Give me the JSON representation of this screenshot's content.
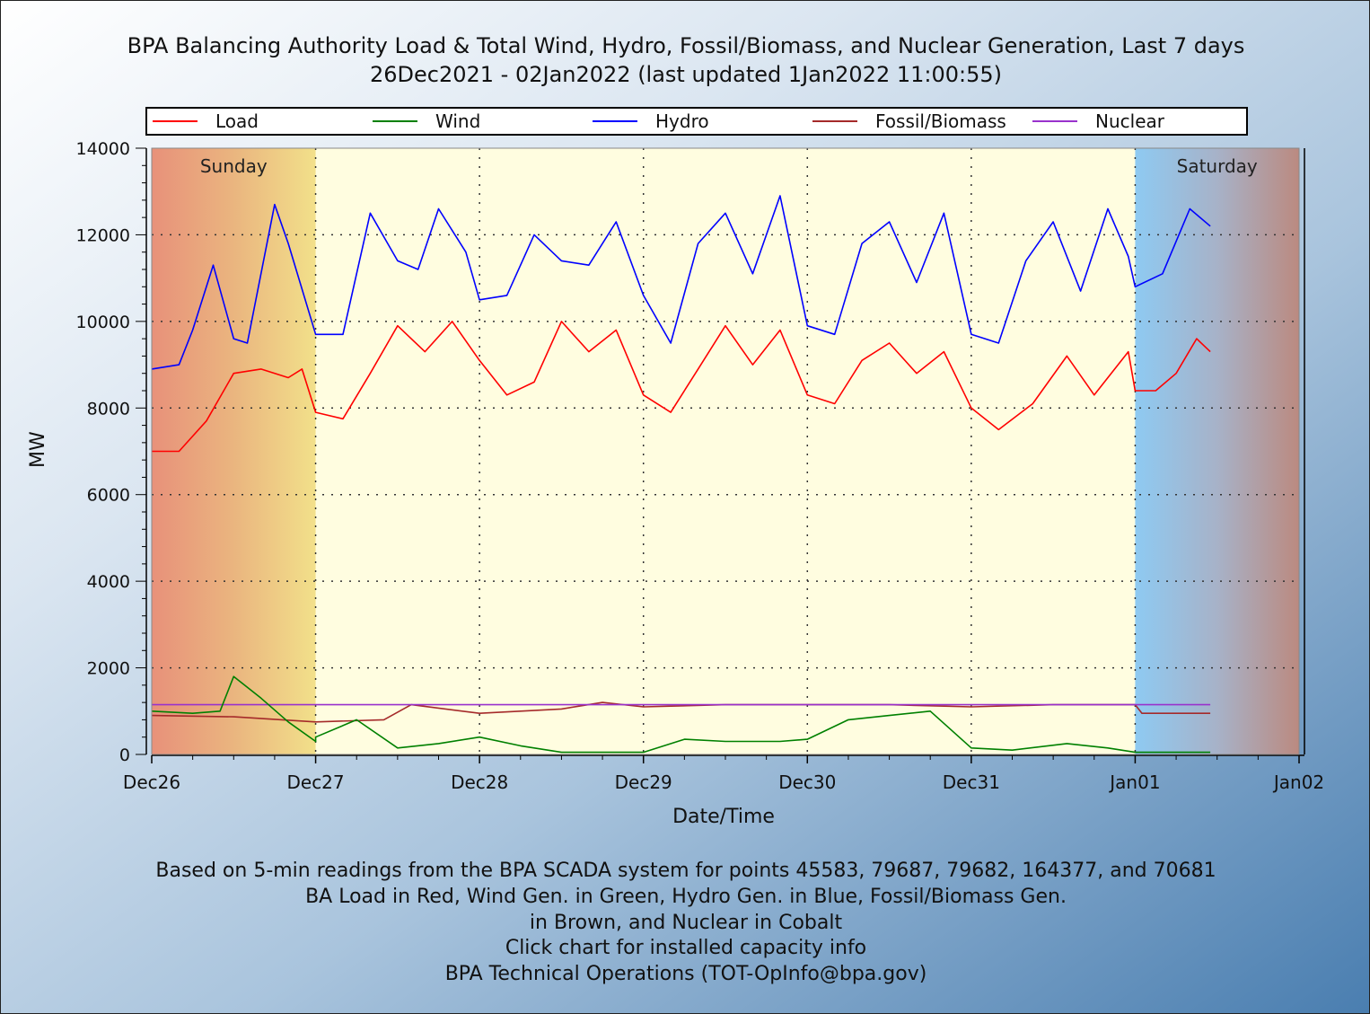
{
  "header": {
    "title_line1": "BPA Balancing Authority Load & Total Wind, Hydro, Fossil/Biomass, and Nuclear Generation, Last 7 days",
    "title_line2": "26Dec2021 - 02Jan2022 (last updated 1Jan2022 11:00:55)"
  },
  "footer": {
    "line1": "Based on 5-min readings from the BPA SCADA system for points 45583, 79687, 79682, 164377, and 70681",
    "line2": "BA Load in Red, Wind Gen. in Green, Hydro Gen. in Blue, Fossil/Biomass Gen.",
    "line3": "in Brown, and Nuclear in Cobalt",
    "line4": "Click chart for installed capacity info",
    "line5": "BPA Technical Operations (TOT-OpInfo@bpa.gov)"
  },
  "chart_data": {
    "type": "line",
    "xlabel": "Date/Time",
    "ylabel": "MW",
    "xlim": [
      "2021-12-26 00:00",
      "2022-01-02 00:00"
    ],
    "ylim": [
      0,
      14000
    ],
    "yticks": [
      0,
      2000,
      4000,
      6000,
      8000,
      10000,
      12000,
      14000
    ],
    "xtick_labels": [
      "Dec26",
      "Dec27",
      "Dec28",
      "Dec29",
      "Dec30",
      "Dec31",
      "Jan01",
      "Jan02"
    ],
    "grid": true,
    "legend_position": "top",
    "weekend_labels": [
      "Sunday",
      "Saturday"
    ],
    "colors": {
      "load": "#ff0000",
      "wind": "#008000",
      "hydro": "#0000ff",
      "fossil": "#a52a2a",
      "nuclear": "#9932cc",
      "plot_bg": "#fffde0",
      "grid": "#333333"
    },
    "series": [
      {
        "name": "Load",
        "color": "#ff0000",
        "x": [
          "2021-12-26 00:00",
          "2021-12-26 04:00",
          "2021-12-26 08:00",
          "2021-12-26 12:00",
          "2021-12-26 16:00",
          "2021-12-26 20:00",
          "2021-12-26 22:00",
          "2021-12-27 00:00",
          "2021-12-27 04:00",
          "2021-12-27 08:00",
          "2021-12-27 12:00",
          "2021-12-27 16:00",
          "2021-12-27 20:00",
          "2021-12-28 00:00",
          "2021-12-28 04:00",
          "2021-12-28 08:00",
          "2021-12-28 12:00",
          "2021-12-28 16:00",
          "2021-12-28 20:00",
          "2021-12-29 00:00",
          "2021-12-29 04:00",
          "2021-12-29 08:00",
          "2021-12-29 12:00",
          "2021-12-29 16:00",
          "2021-12-29 20:00",
          "2021-12-30 00:00",
          "2021-12-30 04:00",
          "2021-12-30 08:00",
          "2021-12-30 12:00",
          "2021-12-30 16:00",
          "2021-12-30 20:00",
          "2021-12-31 00:00",
          "2021-12-31 04:00",
          "2021-12-31 09:00",
          "2021-12-31 14:00",
          "2021-12-31 18:00",
          "2021-12-31 23:00",
          "2022-01-01 00:00",
          "2022-01-01 03:00",
          "2022-01-01 06:00",
          "2022-01-01 09:00",
          "2022-01-01 11:00"
        ],
        "values": [
          7000,
          7000,
          7700,
          8800,
          8900,
          8700,
          8900,
          7900,
          7750,
          8800,
          9900,
          9300,
          10000,
          9100,
          8300,
          8600,
          10000,
          9300,
          9800,
          8300,
          7900,
          8900,
          9900,
          9000,
          9800,
          8300,
          8100,
          9100,
          9500,
          8800,
          9300,
          8000,
          7500,
          8100,
          9200,
          8300,
          9300,
          8400,
          8400,
          8800,
          9600,
          9300
        ]
      },
      {
        "name": "Wind",
        "color": "#008000",
        "x": [
          "2021-12-26 00:00",
          "2021-12-26 06:00",
          "2021-12-26 10:00",
          "2021-12-26 12:00",
          "2021-12-26 16:00",
          "2021-12-26 20:00",
          "2021-12-26 24:00",
          "2021-12-27 00:00",
          "2021-12-27 06:00",
          "2021-12-27 12:00",
          "2021-12-27 18:00",
          "2021-12-28 00:00",
          "2021-12-28 06:00",
          "2021-12-28 12:00",
          "2021-12-29 00:00",
          "2021-12-29 06:00",
          "2021-12-29 12:00",
          "2021-12-29 20:00",
          "2021-12-30 00:00",
          "2021-12-30 06:00",
          "2021-12-30 12:00",
          "2021-12-30 18:00",
          "2021-12-31 00:00",
          "2021-12-31 06:00",
          "2021-12-31 14:00",
          "2021-12-31 20:00",
          "2022-01-01 00:00",
          "2022-01-01 06:00",
          "2022-01-01 11:00"
        ],
        "values": [
          1000,
          950,
          1000,
          1800,
          1300,
          750,
          300,
          400,
          800,
          150,
          250,
          400,
          200,
          50,
          50,
          350,
          300,
          300,
          350,
          800,
          900,
          1000,
          150,
          100,
          250,
          150,
          50,
          50,
          50
        ]
      },
      {
        "name": "Hydro",
        "color": "#0000ff",
        "x": [
          "2021-12-26 00:00",
          "2021-12-26 04:00",
          "2021-12-26 06:00",
          "2021-12-26 09:00",
          "2021-12-26 12:00",
          "2021-12-26 14:00",
          "2021-12-26 18:00",
          "2021-12-26 20:00",
          "2021-12-27 00:00",
          "2021-12-27 04:00",
          "2021-12-27 08:00",
          "2021-12-27 12:00",
          "2021-12-27 15:00",
          "2021-12-27 18:00",
          "2021-12-27 22:00",
          "2021-12-28 00:00",
          "2021-12-28 04:00",
          "2021-12-28 08:00",
          "2021-12-28 12:00",
          "2021-12-28 16:00",
          "2021-12-28 20:00",
          "2021-12-29 00:00",
          "2021-12-29 04:00",
          "2021-12-29 08:00",
          "2021-12-29 12:00",
          "2021-12-29 16:00",
          "2021-12-29 20:00",
          "2021-12-30 00:00",
          "2021-12-30 04:00",
          "2021-12-30 08:00",
          "2021-12-30 12:00",
          "2021-12-30 16:00",
          "2021-12-30 20:00",
          "2021-12-31 00:00",
          "2021-12-31 04:00",
          "2021-12-31 08:00",
          "2021-12-31 12:00",
          "2021-12-31 16:00",
          "2021-12-31 20:00",
          "2021-12-31 23:00",
          "2022-01-01 00:00",
          "2022-01-01 04:00",
          "2022-01-01 08:00",
          "2022-01-01 11:00"
        ],
        "values": [
          8900,
          9000,
          9800,
          11300,
          9600,
          9500,
          12700,
          11800,
          9700,
          9700,
          12500,
          11400,
          11200,
          12600,
          11600,
          10500,
          10600,
          12000,
          11400,
          11300,
          12300,
          10600,
          9500,
          11800,
          12500,
          11100,
          12900,
          9900,
          9700,
          11800,
          12300,
          10900,
          12500,
          9700,
          9500,
          11400,
          12300,
          10700,
          12600,
          11500,
          10800,
          11100,
          12600,
          12200
        ]
      },
      {
        "name": "Fossil/Biomass",
        "color": "#a52a2a",
        "x": [
          "2021-12-26 00:00",
          "2021-12-26 12:00",
          "2021-12-27 00:00",
          "2021-12-27 10:00",
          "2021-12-27 14:00",
          "2021-12-28 00:00",
          "2021-12-28 12:00",
          "2021-12-28 18:00",
          "2021-12-29 00:00",
          "2021-12-29 12:00",
          "2021-12-30 00:00",
          "2021-12-30 12:00",
          "2021-12-31 00:00",
          "2021-12-31 12:00",
          "2022-01-01 00:00",
          "2022-01-01 01:00",
          "2022-01-01 11:00"
        ],
        "values": [
          900,
          870,
          750,
          800,
          1150,
          950,
          1050,
          1200,
          1100,
          1150,
          1150,
          1150,
          1100,
          1150,
          1150,
          950,
          950
        ]
      },
      {
        "name": "Nuclear",
        "color": "#9932cc",
        "x": [
          "2021-12-26 00:00",
          "2022-01-01 11:00"
        ],
        "values": [
          1150,
          1150
        ]
      }
    ]
  }
}
